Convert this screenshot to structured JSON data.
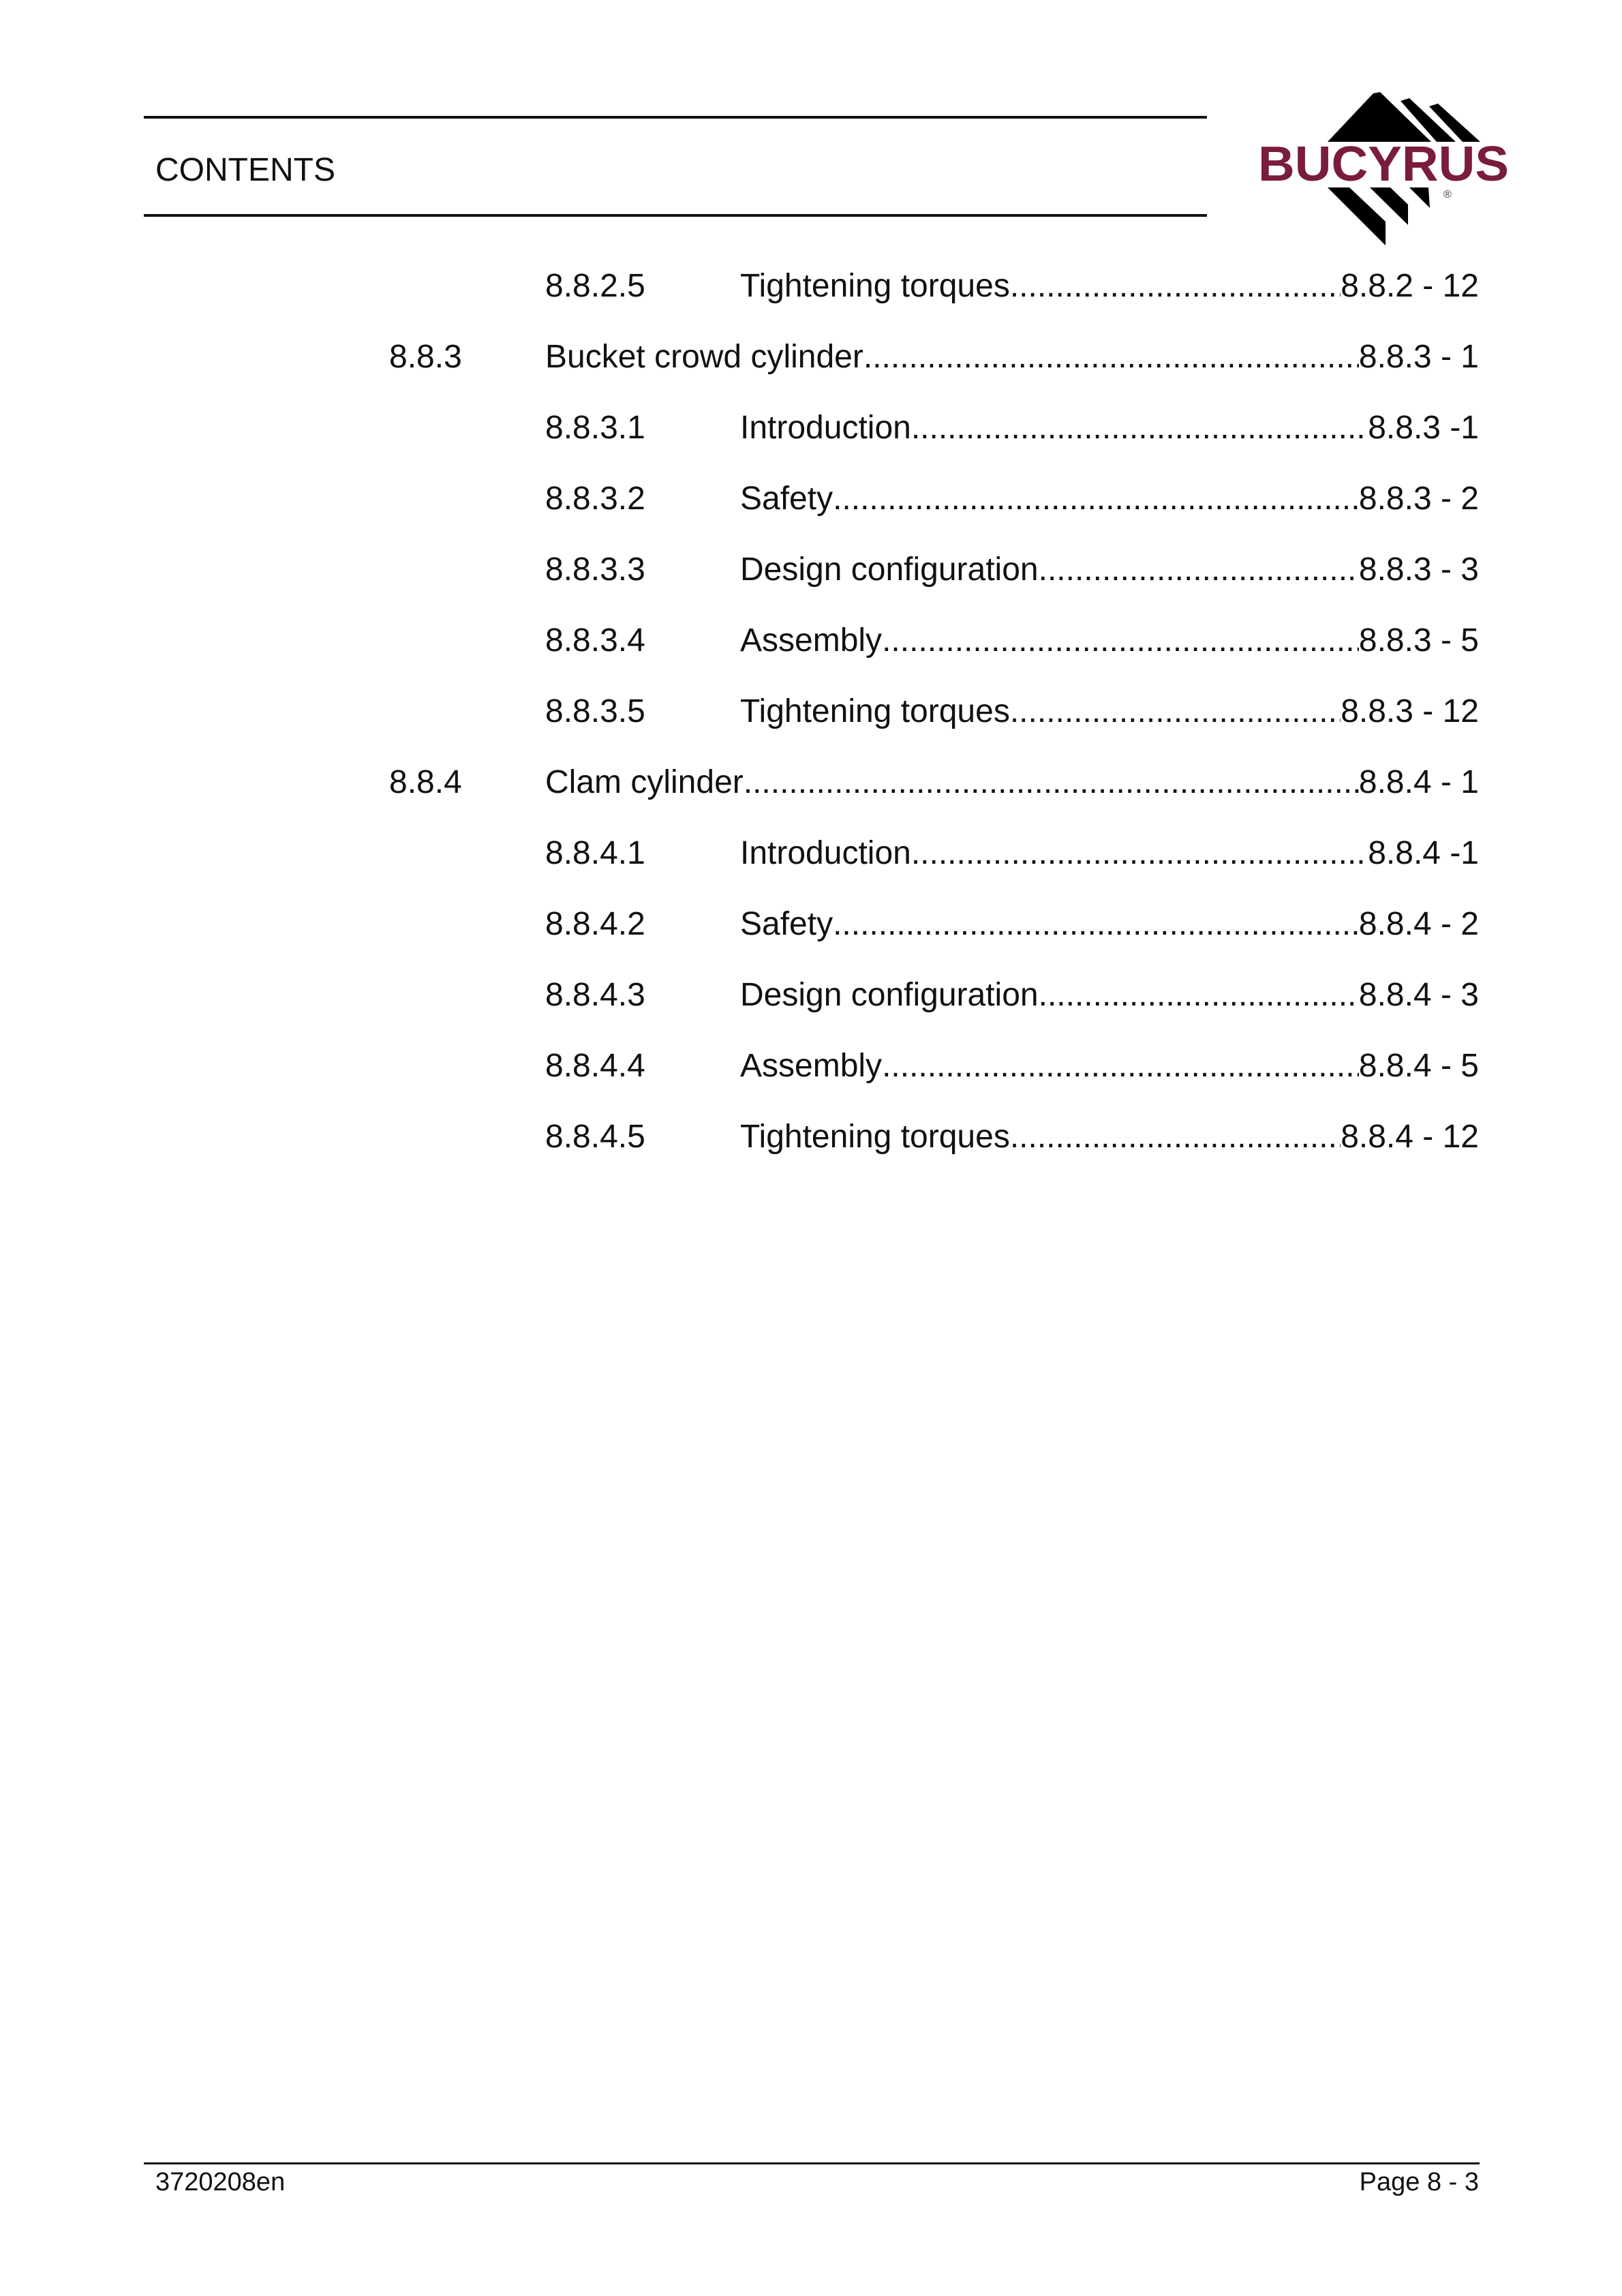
{
  "header": {
    "title": "CONTENTS",
    "logo_text": "BUCYRUS",
    "brand_color": "#7a1c3c"
  },
  "toc": [
    {
      "level": 2,
      "number": "8.8.2.5",
      "title": "Tightening torques",
      "page": "8.8.2 - 12"
    },
    {
      "level": 1,
      "number": "8.8.3",
      "title": "Bucket crowd cylinder",
      "page": "8.8.3 - 1"
    },
    {
      "level": 2,
      "number": "8.8.3.1",
      "title": "Introduction",
      "page": "8.8.3 -1"
    },
    {
      "level": 2,
      "number": "8.8.3.2",
      "title": "Safety ",
      "page": "8.8.3 - 2"
    },
    {
      "level": 2,
      "number": "8.8.3.3",
      "title": "Design configuration",
      "page": "8.8.3 - 3"
    },
    {
      "level": 2,
      "number": "8.8.3.4",
      "title": "Assembly",
      "page": "8.8.3 - 5"
    },
    {
      "level": 2,
      "number": "8.8.3.5",
      "title": "Tightening torques",
      "page": "8.8.3 - 12"
    },
    {
      "level": 1,
      "number": "8.8.4",
      "title": "Clam cylinder",
      "page": "8.8.4 - 1"
    },
    {
      "level": 2,
      "number": "8.8.4.1",
      "title": "Introduction",
      "page": "8.8.4 -1"
    },
    {
      "level": 2,
      "number": "8.8.4.2",
      "title": "Safety ",
      "page": "8.8.4 - 2"
    },
    {
      "level": 2,
      "number": "8.8.4.3",
      "title": "Design configuration",
      "page": "8.8.4 - 3"
    },
    {
      "level": 2,
      "number": "8.8.4.4",
      "title": "Assembly",
      "page": "8.8.4 - 5"
    },
    {
      "level": 2,
      "number": "8.8.4.5",
      "title": "Tightening torques",
      "page": "8.8.4 - 12"
    }
  ],
  "footer": {
    "doc_number": "3720208en",
    "page": "Page 8 - 3"
  }
}
